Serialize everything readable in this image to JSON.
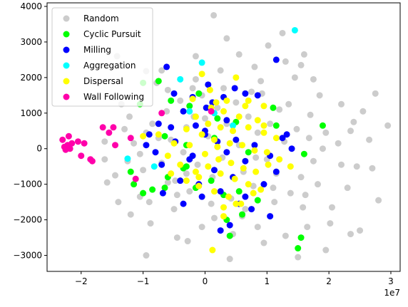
{
  "chart_data": {
    "type": "scatter",
    "title": "",
    "xlabel": "",
    "ylabel": "",
    "x_offset_label": "1e7",
    "xlim": [
      -2.55,
      3.15
    ],
    "ylim": [
      -3450,
      4100
    ],
    "x_ticks": [
      -2,
      -1,
      0,
      1,
      2,
      3
    ],
    "x_tick_labels": [
      "−2",
      "−1",
      "0",
      "1",
      "2",
      "3"
    ],
    "y_ticks": [
      -3000,
      -2000,
      -1000,
      0,
      1000,
      2000,
      3000,
      4000
    ],
    "y_tick_labels": [
      "−3000",
      "−2000",
      "−1000",
      "0",
      "1000",
      "2000",
      "3000",
      "4000"
    ],
    "grid": false,
    "legend_position": "top-left",
    "series": [
      {
        "name": "Random",
        "color": "#cccccc",
        "points": [
          [
            0.14,
            3750
          ],
          [
            -1.42,
            2600
          ],
          [
            -0.95,
            2180
          ],
          [
            -0.6,
            1650
          ],
          [
            -0.2,
            1700
          ],
          [
            0.8,
            2300
          ],
          [
            1.02,
            2900
          ],
          [
            1.25,
            3250
          ],
          [
            1.6,
            2650
          ],
          [
            1.45,
            2000
          ],
          [
            1.85,
            1500
          ],
          [
            2.4,
            750
          ],
          [
            2.75,
            1550
          ],
          [
            2.95,
            650
          ],
          [
            2.65,
            250
          ],
          [
            2.45,
            -500
          ],
          [
            2.7,
            -550
          ],
          [
            2.8,
            -1450
          ],
          [
            2.5,
            -2300
          ],
          [
            2.35,
            -2400
          ],
          [
            1.95,
            -2850
          ],
          [
            1.65,
            -2200
          ],
          [
            1.3,
            -2450
          ],
          [
            0.85,
            -2200
          ],
          [
            0.4,
            -3100
          ],
          [
            -0.45,
            -2500
          ],
          [
            -0.95,
            -3000
          ],
          [
            -1.05,
            -1350
          ],
          [
            -0.5,
            -1700
          ],
          [
            0.15,
            -1950
          ],
          [
            0.65,
            -1700
          ],
          [
            1.1,
            -1100
          ],
          [
            1.55,
            -800
          ],
          [
            1.75,
            -350
          ],
          [
            2.2,
            -450
          ],
          [
            1.95,
            450
          ],
          [
            2.15,
            150
          ],
          [
            1.7,
            950
          ],
          [
            1.35,
            1250
          ],
          [
            -1.62,
            200
          ],
          [
            -1.62,
            -300
          ],
          [
            -1.45,
            -750
          ],
          [
            -1.58,
            -950
          ],
          [
            -1.3,
            550
          ],
          [
            -1.22,
            900
          ],
          [
            -1.15,
            150
          ],
          [
            -1.05,
            -150
          ],
          [
            -0.95,
            450
          ],
          [
            -0.85,
            700
          ],
          [
            -0.7,
            -400
          ],
          [
            -0.62,
            1050
          ],
          [
            -0.55,
            250
          ],
          [
            -0.48,
            -900
          ],
          [
            -0.4,
            1350
          ],
          [
            -0.35,
            -100
          ],
          [
            -0.3,
            600
          ],
          [
            -0.25,
            -1200
          ],
          [
            -0.18,
            900
          ],
          [
            -0.12,
            -450
          ],
          [
            -0.05,
            1500
          ],
          [
            0.05,
            350
          ],
          [
            0.12,
            -800
          ],
          [
            0.2,
            1150
          ],
          [
            0.28,
            -250
          ],
          [
            0.35,
            700
          ],
          [
            0.42,
            -1400
          ],
          [
            0.5,
            1300
          ],
          [
            0.55,
            100
          ],
          [
            0.62,
            -650
          ],
          [
            0.7,
            900
          ],
          [
            0.78,
            -1050
          ],
          [
            0.85,
            450
          ],
          [
            0.92,
            1550
          ],
          [
            1.0,
            -300
          ],
          [
            1.05,
            700
          ],
          [
            1.15,
            -700
          ],
          [
            1.2,
            1100
          ],
          [
            1.28,
            200
          ],
          [
            1.38,
            -1250
          ],
          [
            1.48,
            550
          ],
          [
            1.58,
            -1650
          ],
          [
            1.68,
            300
          ],
          [
            1.82,
            -1000
          ],
          [
            2.05,
            -1650
          ],
          [
            0.25,
            2200
          ],
          [
            -0.15,
            2600
          ],
          [
            0.55,
            2650
          ],
          [
            -0.78,
            1850
          ],
          [
            0.9,
            1900
          ],
          [
            -1.35,
            1250
          ],
          [
            -1.48,
            1450
          ],
          [
            -0.88,
            -2100
          ],
          [
            -0.28,
            -2600
          ],
          [
            0.45,
            -2400
          ],
          [
            0.95,
            -2650
          ],
          [
            1.5,
            -3050
          ],
          [
            -1.2,
            -1850
          ],
          [
            1.75,
            1950
          ],
          [
            2.2,
            1250
          ],
          [
            2.55,
            1050
          ],
          [
            2.3,
            -1100
          ],
          [
            2.02,
            -2100
          ],
          [
            -0.05,
            -2200
          ],
          [
            -0.7,
            2200
          ],
          [
            0.35,
            3100
          ],
          [
            1.55,
            2350
          ],
          [
            -1.4,
            -1500
          ],
          [
            0.0,
            850
          ],
          [
            0.1,
            -1550
          ],
          [
            -0.45,
            -1300
          ],
          [
            0.75,
            1600
          ],
          [
            1.3,
            2450
          ],
          [
            -1.0,
            -600
          ],
          [
            -0.75,
            300
          ],
          [
            -0.6,
            -950
          ],
          [
            -0.3,
            -700
          ],
          [
            0.3,
            1700
          ],
          [
            0.6,
            -1900
          ],
          [
            1.12,
            -1500
          ],
          [
            -1.25,
            -350
          ],
          [
            -0.9,
            -1500
          ],
          [
            -0.15,
            1950
          ],
          [
            0.82,
            -250
          ],
          [
            1.9,
            0
          ],
          [
            2.35,
            500
          ],
          [
            1.62,
            -1300
          ]
        ]
      },
      {
        "name": "Cyclic Pursuit",
        "color": "#00ff00",
        "points": [
          [
            -1.0,
            1850
          ],
          [
            -1.05,
            1250
          ],
          [
            -0.75,
            1900
          ],
          [
            -0.55,
            1350
          ],
          [
            -0.25,
            1200
          ],
          [
            -0.1,
            1550
          ],
          [
            1.1,
            1150
          ],
          [
            1.15,
            650
          ],
          [
            0.2,
            850
          ],
          [
            0.5,
            750
          ],
          [
            -0.65,
            350
          ],
          [
            -0.3,
            100
          ],
          [
            -1.15,
            -1000
          ],
          [
            -0.85,
            -1150
          ],
          [
            -0.65,
            -1100
          ],
          [
            -0.6,
            -800
          ],
          [
            -0.35,
            -550
          ],
          [
            -0.15,
            -1100
          ],
          [
            0.1,
            -900
          ],
          [
            0.3,
            -1300
          ],
          [
            0.55,
            -1200
          ],
          [
            0.85,
            -1450
          ],
          [
            -1.2,
            -650
          ],
          [
            -1.0,
            -1250
          ],
          [
            0.35,
            -2000
          ],
          [
            0.6,
            -1850
          ],
          [
            0.4,
            -2450
          ],
          [
            1.5,
            -2800
          ],
          [
            1.55,
            -2500
          ],
          [
            1.6,
            -150
          ],
          [
            1.9,
            650
          ],
          [
            -0.3,
            -500
          ],
          [
            0.15,
            300
          ],
          [
            0.7,
            -100
          ]
        ]
      },
      {
        "name": "Milling",
        "color": "#0000ff",
        "points": [
          [
            -0.62,
            2300
          ],
          [
            -0.5,
            1550
          ],
          [
            -0.2,
            1450
          ],
          [
            0.05,
            1800
          ],
          [
            0.3,
            1450
          ],
          [
            0.48,
            1700
          ],
          [
            0.65,
            1550
          ],
          [
            0.85,
            1500
          ],
          [
            0.12,
            1300
          ],
          [
            0.02,
            1150
          ],
          [
            -0.35,
            1050
          ],
          [
            -0.55,
            600
          ],
          [
            -0.75,
            700
          ],
          [
            -0.9,
            400
          ],
          [
            -0.95,
            100
          ],
          [
            -0.8,
            -100
          ],
          [
            -0.48,
            200
          ],
          [
            -0.2,
            -200
          ],
          [
            0.0,
            500
          ],
          [
            0.2,
            200
          ],
          [
            0.35,
            -100
          ],
          [
            0.5,
            250
          ],
          [
            0.65,
            -350
          ],
          [
            0.8,
            100
          ],
          [
            1.05,
            -200
          ],
          [
            1.25,
            300
          ],
          [
            1.4,
            0
          ],
          [
            1.32,
            400
          ],
          [
            -0.68,
            -1250
          ],
          [
            -0.4,
            -900
          ],
          [
            -0.1,
            -1000
          ],
          [
            0.25,
            -1200
          ],
          [
            0.45,
            -800
          ],
          [
            0.65,
            -1350
          ],
          [
            0.95,
            -1000
          ],
          [
            1.05,
            -1900
          ],
          [
            -0.35,
            -1550
          ],
          [
            -0.05,
            -1350
          ],
          [
            0.55,
            -1550
          ],
          [
            0.4,
            -2150
          ],
          [
            0.25,
            -2300
          ],
          [
            0.75,
            -1700
          ],
          [
            1.15,
            2500
          ],
          [
            0.0,
            400
          ],
          [
            -0.15,
            650
          ],
          [
            0.35,
            800
          ],
          [
            -0.7,
            -450
          ],
          [
            1.15,
            -650
          ],
          [
            0.15,
            -600
          ],
          [
            -0.25,
            -300
          ]
        ]
      },
      {
        "name": "Aggregation",
        "color": "#00ffff",
        "points": [
          [
            1.45,
            3330
          ],
          [
            -0.05,
            2420
          ],
          [
            -0.4,
            1950
          ],
          [
            -0.25,
            1050
          ],
          [
            0.15,
            1000
          ],
          [
            0.45,
            650
          ],
          [
            -1.25,
            -280
          ],
          [
            -0.82,
            -500
          ]
        ]
      },
      {
        "name": "Dispersal",
        "color": "#ffff00",
        "points": [
          [
            -0.05,
            2100
          ],
          [
            0.5,
            2000
          ],
          [
            0.08,
            1650
          ],
          [
            0.35,
            1350
          ],
          [
            0.65,
            1200
          ],
          [
            0.95,
            1200
          ],
          [
            -0.2,
            1400
          ],
          [
            0.18,
            1300
          ],
          [
            0.3,
            1050
          ],
          [
            0.55,
            900
          ],
          [
            0.85,
            800
          ],
          [
            -0.15,
            900
          ],
          [
            0.05,
            700
          ],
          [
            0.25,
            600
          ],
          [
            0.45,
            500
          ],
          [
            0.7,
            600
          ],
          [
            0.95,
            450
          ],
          [
            1.15,
            300
          ],
          [
            -0.3,
            550
          ],
          [
            -0.05,
            400
          ],
          [
            0.15,
            250
          ],
          [
            0.4,
            150
          ],
          [
            0.6,
            100
          ],
          [
            0.8,
            -50
          ],
          [
            1.0,
            -100
          ],
          [
            1.2,
            -300
          ],
          [
            -0.5,
            150
          ],
          [
            -0.25,
            100
          ],
          [
            0.0,
            -150
          ],
          [
            0.22,
            -300
          ],
          [
            0.42,
            -400
          ],
          [
            0.62,
            -550
          ],
          [
            0.82,
            -650
          ],
          [
            1.02,
            -450
          ],
          [
            -0.6,
            -200
          ],
          [
            -0.4,
            -450
          ],
          [
            -0.15,
            -650
          ],
          [
            0.05,
            -500
          ],
          [
            0.25,
            -700
          ],
          [
            0.48,
            -850
          ],
          [
            0.7,
            -1000
          ],
          [
            0.9,
            -1150
          ],
          [
            -0.3,
            -900
          ],
          [
            -0.1,
            -1050
          ],
          [
            0.15,
            -1200
          ],
          [
            0.38,
            -1350
          ],
          [
            0.58,
            -1550
          ],
          [
            0.78,
            -1250
          ],
          [
            1.38,
            -500
          ],
          [
            0.12,
            -2850
          ],
          [
            0.3,
            -1900
          ],
          [
            0.5,
            -1550
          ],
          [
            -0.75,
            400
          ],
          [
            -1.0,
            350
          ],
          [
            -0.55,
            -700
          ],
          [
            0.1,
            1150
          ],
          [
            0.7,
            1350
          ],
          [
            0.95,
            650
          ],
          [
            0.3,
            -1650
          ],
          [
            -0.1,
            -800
          ],
          [
            0.2,
            50
          ]
        ]
      },
      {
        "name": "Wall Following",
        "color": "#ff00aa",
        "points": [
          [
            -2.3,
            250
          ],
          [
            -2.27,
            50
          ],
          [
            -2.25,
            -30
          ],
          [
            -2.22,
            100
          ],
          [
            -2.2,
            350
          ],
          [
            -2.18,
            0
          ],
          [
            -2.15,
            150
          ],
          [
            -2.05,
            200
          ],
          [
            -2.0,
            -200
          ],
          [
            -1.95,
            150
          ],
          [
            -1.85,
            -300
          ],
          [
            -1.82,
            -350
          ],
          [
            -1.65,
            600
          ],
          [
            -1.55,
            450
          ],
          [
            -1.45,
            100
          ],
          [
            -1.48,
            600
          ],
          [
            -1.2,
            300
          ],
          [
            -1.12,
            -850
          ],
          [
            -0.7,
            1000
          ],
          [
            0.1,
            1050
          ]
        ]
      }
    ]
  }
}
